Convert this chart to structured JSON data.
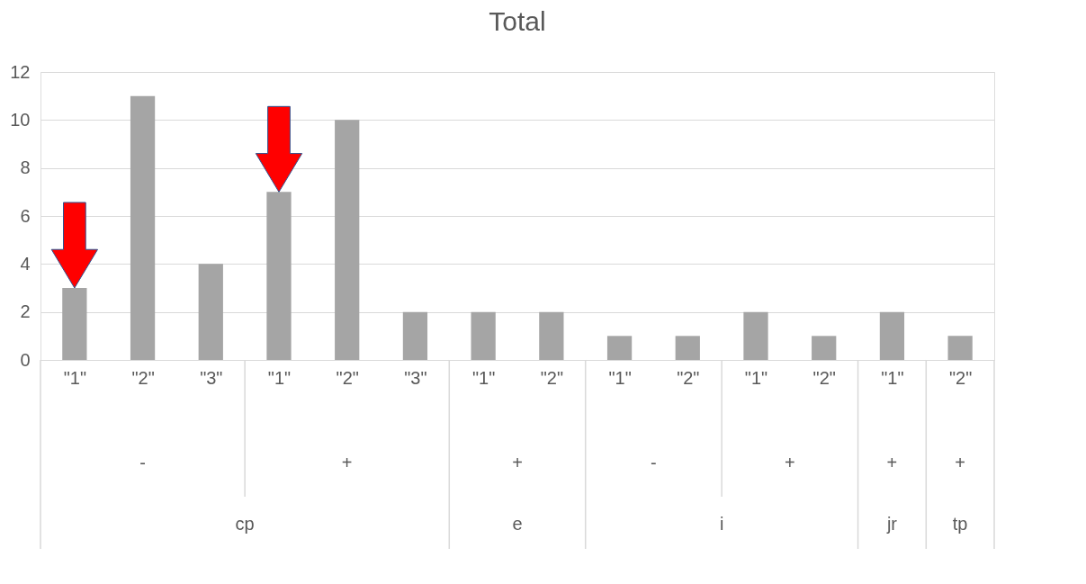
{
  "chart_data": {
    "type": "bar",
    "title": "Total",
    "categories": [
      "\"1\"",
      "\"2\"",
      "\"3\"",
      "\"1\"",
      "\"2\"",
      "\"3\"",
      "\"1\"",
      "\"2\"",
      "\"1\"",
      "\"2\"",
      "\"1\"",
      "\"2\"",
      "\"1\"",
      "\"2\""
    ],
    "values": [
      3,
      11,
      4,
      7,
      10,
      2,
      2,
      2,
      1,
      1,
      2,
      1,
      2,
      1
    ],
    "color": "#a5a5a5",
    "ylim": [
      0,
      12
    ],
    "yticks": [
      0,
      2,
      4,
      6,
      8,
      10,
      12
    ],
    "grid": "y",
    "annotations": [
      "-",
      "+",
      "+",
      "-",
      "+",
      "+",
      "+",
      "cp",
      "e",
      "i",
      "jr",
      "tp"
    ]
  }
}
